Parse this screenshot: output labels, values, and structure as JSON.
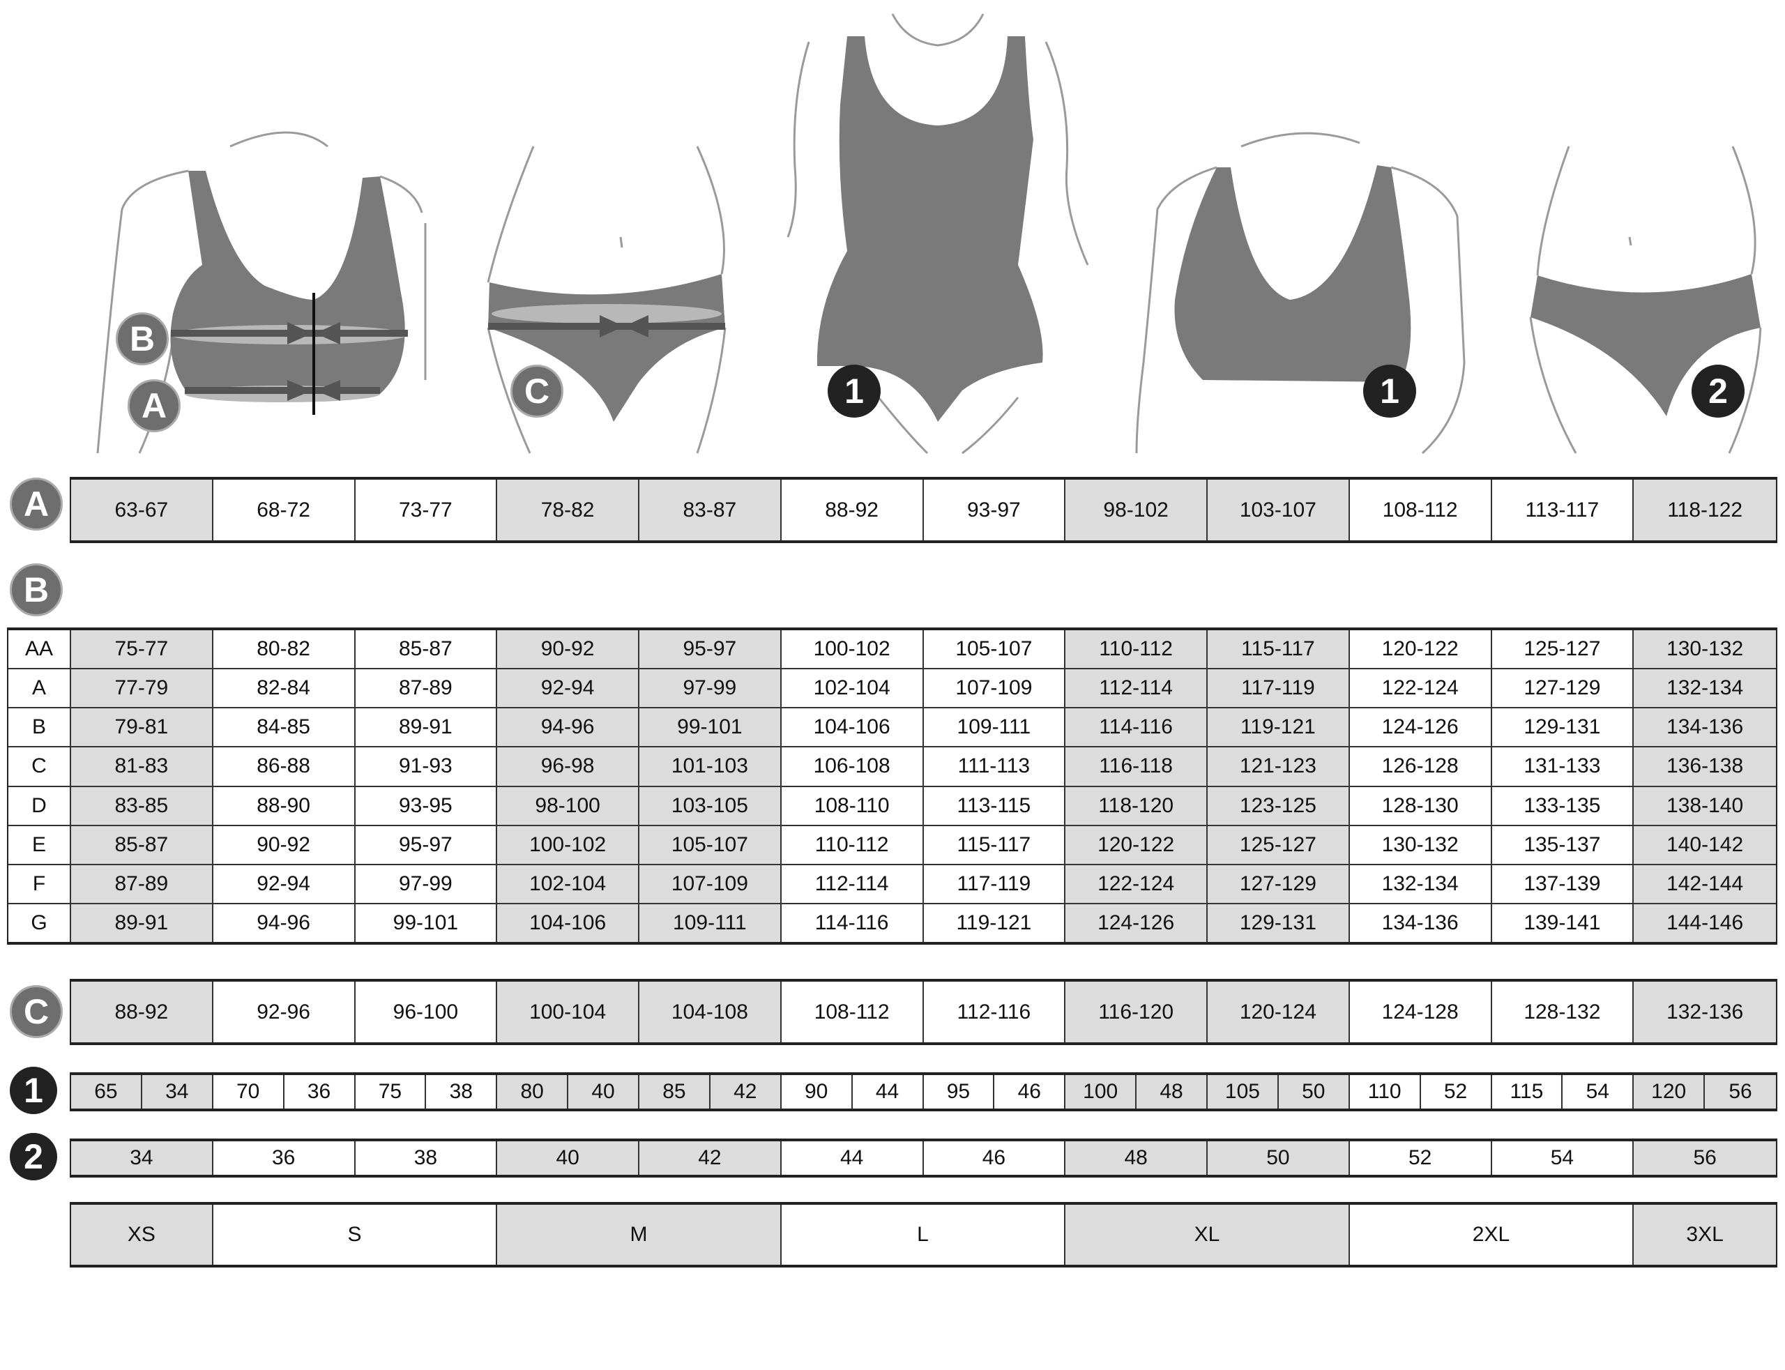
{
  "colors": {
    "shaded_cell": "#dcdcdc",
    "garment": "#7a7a7a",
    "badge_light": "#6e6e6e",
    "badge_dark": "#222222"
  },
  "figure_badges": {
    "bust_b": "B",
    "underbust_a": "A",
    "hips_c": "C",
    "swimsuit_1": "1",
    "bra_1": "1",
    "briefs_2": "2"
  },
  "shaded_columns": [
    0,
    3,
    4,
    7,
    8,
    11
  ],
  "table_a": {
    "badge": "A",
    "values": [
      "63-67",
      "68-72",
      "73-77",
      "78-82",
      "83-87",
      "88-92",
      "93-97",
      "98-102",
      "103-107",
      "108-112",
      "113-117",
      "118-122"
    ]
  },
  "table_b": {
    "badge": "B",
    "rows": [
      {
        "cup": "AA",
        "values": [
          "75-77",
          "80-82",
          "85-87",
          "90-92",
          "95-97",
          "100-102",
          "105-107",
          "110-112",
          "115-117",
          "120-122",
          "125-127",
          "130-132"
        ]
      },
      {
        "cup": "A",
        "values": [
          "77-79",
          "82-84",
          "87-89",
          "92-94",
          "97-99",
          "102-104",
          "107-109",
          "112-114",
          "117-119",
          "122-124",
          "127-129",
          "132-134"
        ]
      },
      {
        "cup": "B",
        "values": [
          "79-81",
          "84-85",
          "89-91",
          "94-96",
          "99-101",
          "104-106",
          "109-111",
          "114-116",
          "119-121",
          "124-126",
          "129-131",
          "134-136"
        ]
      },
      {
        "cup": "C",
        "values": [
          "81-83",
          "86-88",
          "91-93",
          "96-98",
          "101-103",
          "106-108",
          "111-113",
          "116-118",
          "121-123",
          "126-128",
          "131-133",
          "136-138"
        ]
      },
      {
        "cup": "D",
        "values": [
          "83-85",
          "88-90",
          "93-95",
          "98-100",
          "103-105",
          "108-110",
          "113-115",
          "118-120",
          "123-125",
          "128-130",
          "133-135",
          "138-140"
        ]
      },
      {
        "cup": "E",
        "values": [
          "85-87",
          "90-92",
          "95-97",
          "100-102",
          "105-107",
          "110-112",
          "115-117",
          "120-122",
          "125-127",
          "130-132",
          "135-137",
          "140-142"
        ]
      },
      {
        "cup": "F",
        "values": [
          "87-89",
          "92-94",
          "97-99",
          "102-104",
          "107-109",
          "112-114",
          "117-119",
          "122-124",
          "127-129",
          "132-134",
          "137-139",
          "142-144"
        ]
      },
      {
        "cup": "G",
        "values": [
          "89-91",
          "94-96",
          "99-101",
          "104-106",
          "109-111",
          "114-116",
          "119-121",
          "124-126",
          "129-131",
          "134-136",
          "139-141",
          "144-146"
        ]
      }
    ]
  },
  "table_c": {
    "badge": "C",
    "values": [
      "88-92",
      "92-96",
      "96-100",
      "100-104",
      "104-108",
      "108-112",
      "112-116",
      "116-120",
      "120-124",
      "124-128",
      "128-132",
      "132-136"
    ]
  },
  "table_1": {
    "badge": "1",
    "pairs": [
      [
        "65",
        "34"
      ],
      [
        "70",
        "36"
      ],
      [
        "75",
        "38"
      ],
      [
        "80",
        "40"
      ],
      [
        "85",
        "42"
      ],
      [
        "90",
        "44"
      ],
      [
        "95",
        "46"
      ],
      [
        "100",
        "48"
      ],
      [
        "105",
        "50"
      ],
      [
        "110",
        "52"
      ],
      [
        "115",
        "54"
      ],
      [
        "120",
        "56"
      ]
    ]
  },
  "table_2": {
    "badge": "2",
    "values": [
      "34",
      "36",
      "38",
      "40",
      "42",
      "44",
      "46",
      "48",
      "50",
      "52",
      "54",
      "56"
    ]
  },
  "sizes": [
    {
      "label": "XS",
      "span": 1,
      "shaded": true
    },
    {
      "label": "S",
      "span": 2,
      "shaded": false
    },
    {
      "label": "M",
      "span": 2,
      "shaded": true
    },
    {
      "label": "L",
      "span": 2,
      "shaded": false
    },
    {
      "label": "XL",
      "span": 2,
      "shaded": true
    },
    {
      "label": "2XL",
      "span": 2,
      "shaded": false
    },
    {
      "label": "3XL",
      "span": 1,
      "shaded": true
    }
  ]
}
